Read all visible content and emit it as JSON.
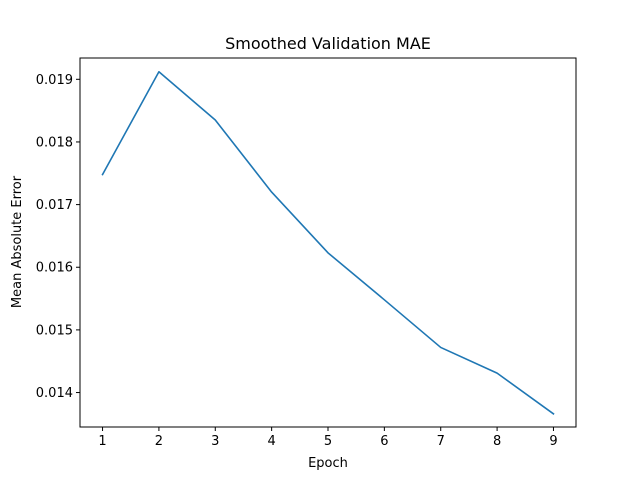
{
  "chart_data": {
    "type": "line",
    "title": "Smoothed Validation MAE",
    "xlabel": "Epoch",
    "ylabel": "Mean Absolute Error",
    "x": [
      1,
      2,
      3,
      4,
      5,
      6,
      7,
      8,
      9
    ],
    "series": [
      {
        "values": [
          0.01748,
          0.01912,
          0.01835,
          0.0172,
          0.01623,
          0.01548,
          0.01472,
          0.01431,
          0.01366
        ],
        "color": "#1f77b4"
      }
    ],
    "xlim": [
      0.6,
      9.4
    ],
    "ylim": [
      0.01345,
      0.01934
    ],
    "xticks": [
      1,
      2,
      3,
      4,
      5,
      6,
      7,
      8,
      9
    ],
    "yticks": [
      0.014,
      0.015,
      0.016,
      0.017,
      0.018,
      0.019
    ],
    "ytick_labels": [
      "0.014",
      "0.015",
      "0.016",
      "0.017",
      "0.018",
      "0.019"
    ],
    "grid": false,
    "legend": "none"
  }
}
